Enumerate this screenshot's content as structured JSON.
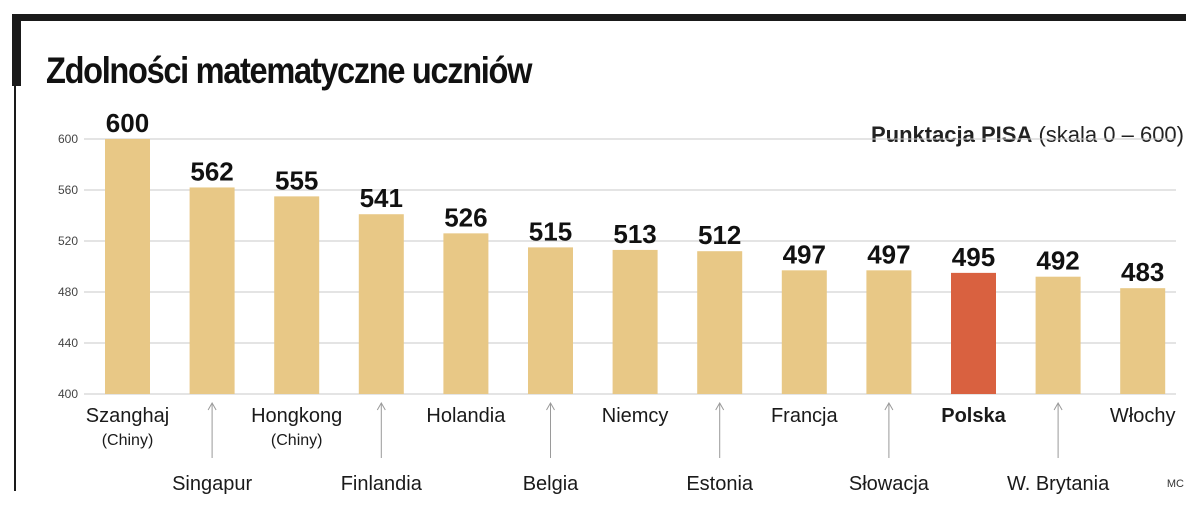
{
  "header": {
    "title": "Zdolności matematyczne uczniów",
    "caption_bold": "Punktacja PISA",
    "caption_rest": "(skala 0 – 600)",
    "credit": "MC"
  },
  "colors": {
    "bar": "#e8c886",
    "highlight": "#d96140",
    "grid": "#c9c9c9",
    "frame": "#1a1a1a"
  },
  "chart_data": {
    "type": "bar",
    "categories": [
      "Szanghaj (Chiny)",
      "Singapur",
      "Hongkong (Chiny)",
      "Finlandia",
      "Holandia",
      "Belgia",
      "Niemcy",
      "Estonia",
      "Francja",
      "Słowacja",
      "Polska",
      "W. Brytania",
      "Włochy"
    ],
    "label_lines": [
      [
        "Szanghaj",
        "(Chiny)"
      ],
      [
        "Singapur"
      ],
      [
        "Hongkong",
        "(Chiny)"
      ],
      [
        "Finlandia"
      ],
      [
        "Holandia"
      ],
      [
        "Belgia"
      ],
      [
        "Niemcy"
      ],
      [
        "Estonia"
      ],
      [
        "Francja"
      ],
      [
        "Słowacja"
      ],
      [
        "Polska"
      ],
      [
        "W. Brytania"
      ],
      [
        "Włochy"
      ]
    ],
    "values": [
      600,
      562,
      555,
      541,
      526,
      515,
      513,
      512,
      497,
      497,
      495,
      492,
      483
    ],
    "highlight": "Polska",
    "ylim": [
      400,
      600
    ],
    "yticks": [
      400,
      440,
      480,
      520,
      560,
      600
    ],
    "grid": true,
    "title": "Zdolności matematyczne uczniów",
    "ylabel": "Punktacja PISA (skala 0 – 600)",
    "xlabel": ""
  }
}
